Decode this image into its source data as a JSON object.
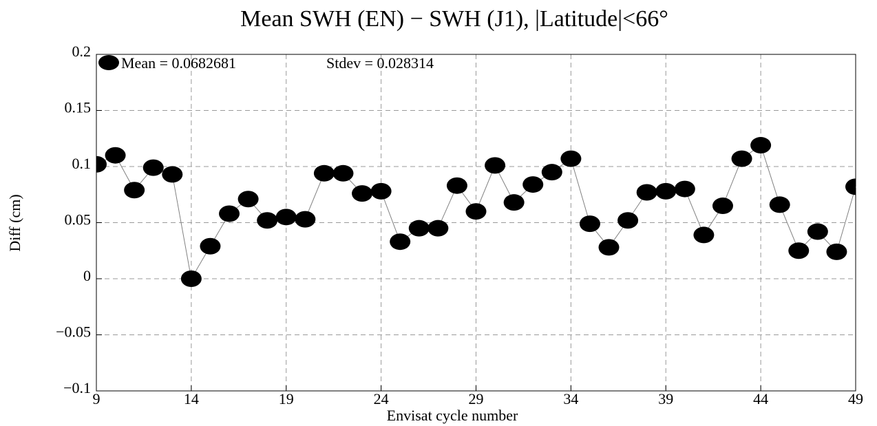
{
  "chart_data": {
    "type": "line",
    "title": "Mean SWH (EN) − SWH (J1), |Latitude|<66°",
    "xlabel": "Envisat cycle number",
    "ylabel": "Diff (cm)",
    "annotations": [
      "Mean = 0.0682681",
      "Stdev = 0.028314"
    ],
    "x": [
      9,
      10,
      11,
      12,
      13,
      14,
      15,
      16,
      17,
      18,
      19,
      20,
      21,
      22,
      23,
      24,
      25,
      26,
      27,
      28,
      29,
      30,
      31,
      32,
      33,
      34,
      35,
      36,
      37,
      38,
      39,
      40,
      41,
      42,
      43,
      44,
      45,
      46,
      47,
      48,
      49
    ],
    "values": [
      0.102,
      0.11,
      0.079,
      0.099,
      0.093,
      0.0,
      0.029,
      0.058,
      0.071,
      0.052,
      0.055,
      0.053,
      0.094,
      0.094,
      0.076,
      0.078,
      0.033,
      0.045,
      0.045,
      0.083,
      0.06,
      0.101,
      0.068,
      0.084,
      0.095,
      0.107,
      0.049,
      0.028,
      0.052,
      0.077,
      0.078,
      0.08,
      0.039,
      0.065,
      0.107,
      0.119,
      0.066,
      0.025,
      0.042,
      0.024,
      0.082
    ],
    "color": "#000000",
    "line_color": "#808080",
    "xlim": [
      9,
      49
    ],
    "xticks": [
      9,
      14,
      19,
      24,
      29,
      34,
      39,
      44,
      49
    ],
    "ylim": [
      -0.1,
      0.2
    ],
    "yticks": [
      {
        "value": -0.1,
        "label": "−0.1"
      },
      {
        "value": -0.05,
        "label": "−0.05"
      },
      0,
      0.05,
      0.1,
      0.15,
      0.2
    ],
    "grid": true
  }
}
